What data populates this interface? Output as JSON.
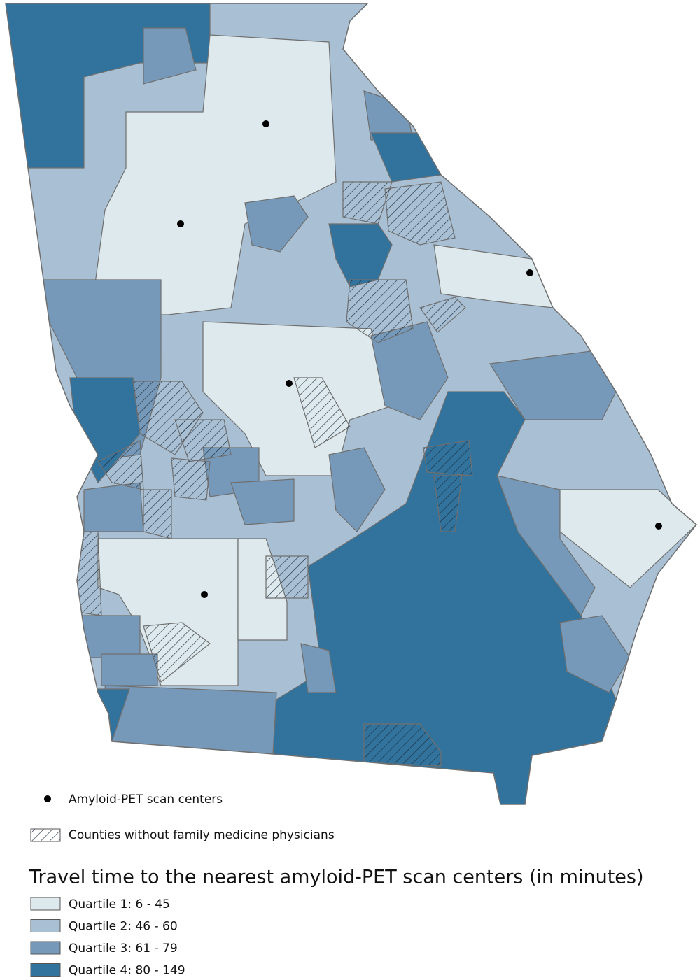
{
  "legend": {
    "scan_centers": "Amyloid-PET scan centers",
    "no_physicians": "Counties without family medicine physicians",
    "title": "Travel time to the nearest amyloid-PET scan centers (in minutes)",
    "quartiles": [
      {
        "label": "Quartile 1: 6 - 45",
        "color": "#dde9ec"
      },
      {
        "label": "Quartile 2: 46 - 60",
        "color": "#a9c0d4"
      },
      {
        "label": "Quartile 3: 61 - 79",
        "color": "#7699b9"
      },
      {
        "label": "Quartile 4: 80 - 149",
        "color": "#31739d"
      }
    ]
  }
}
